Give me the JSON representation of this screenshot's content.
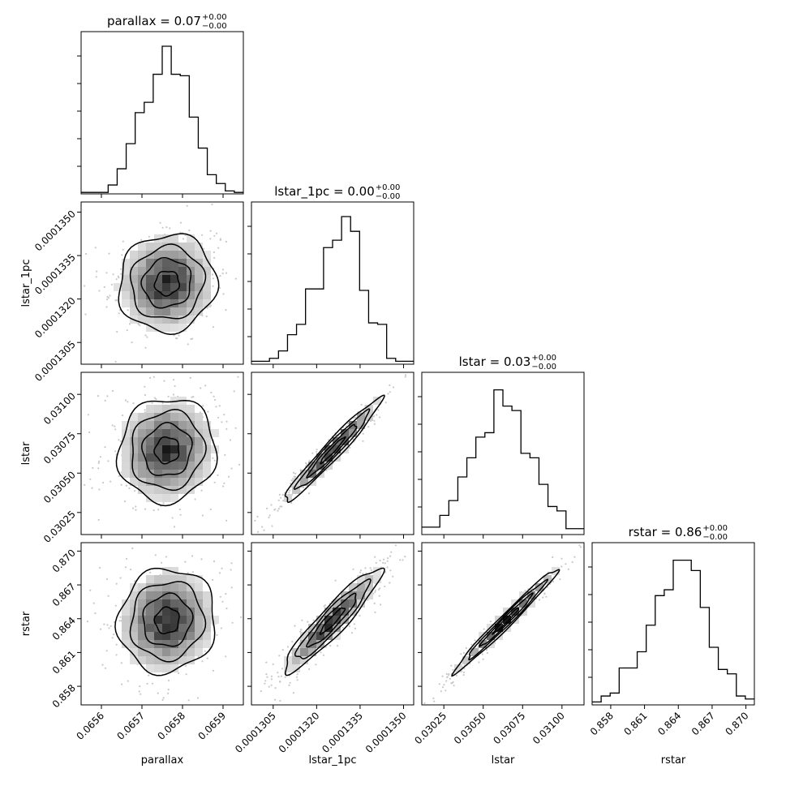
{
  "chart_data": {
    "type": "corner",
    "parameters": [
      "parallax",
      "lstar_1pc",
      "lstar",
      "rstar"
    ],
    "titles": [
      {
        "base": "parallax = 0.07",
        "sup": "+0.00",
        "sub": "−0.00"
      },
      {
        "base": "lstar_1pc = 0.00",
        "sup": "+0.00",
        "sub": "−0.00"
      },
      {
        "base": "lstar = 0.03",
        "sup": "+0.00",
        "sub": "−0.00"
      },
      {
        "base": "rstar = 0.86",
        "sup": "+0.00",
        "sub": "−0.00"
      }
    ],
    "axis_labels": [
      "parallax",
      "lstar_1pc",
      "lstar",
      "rstar"
    ],
    "ranges": [
      [
        0.06555,
        0.06595
      ],
      [
        0.00012975,
        0.00013535
      ],
      [
        0.03011,
        0.03114
      ],
      [
        0.85635,
        0.87075
      ]
    ],
    "ticks": [
      {
        "values": [
          0.0656,
          0.0657,
          0.0658,
          0.0659
        ],
        "labels": [
          "0.0656",
          "0.0657",
          "0.0658",
          "0.0659"
        ]
      },
      {
        "values": [
          0.0001305,
          0.000132,
          0.0001335,
          0.000135
        ],
        "labels": [
          "0.0001305",
          "0.0001320",
          "0.0001335",
          "0.0001350"
        ]
      },
      {
        "values": [
          0.03025,
          0.0305,
          0.03075,
          0.031
        ],
        "labels": [
          "0.03025",
          "0.03050",
          "0.03075",
          "0.03100"
        ]
      },
      {
        "values": [
          0.858,
          0.861,
          0.864,
          0.867,
          0.87
        ],
        "labels": [
          "0.858",
          "0.861",
          "0.864",
          "0.867",
          "0.870"
        ]
      }
    ],
    "histograms": [
      [
        0.01,
        0.01,
        0.01,
        0.06,
        0.17,
        0.34,
        0.55,
        0.62,
        0.81,
        1.0,
        0.81,
        0.8,
        0.52,
        0.31,
        0.13,
        0.07,
        0.02,
        0.01
      ],
      [
        0.02,
        0.02,
        0.04,
        0.09,
        0.2,
        0.27,
        0.51,
        0.51,
        0.79,
        0.84,
        1.0,
        0.9,
        0.5,
        0.28,
        0.27,
        0.04,
        0.02,
        0.02
      ],
      [
        0.05,
        0.05,
        0.13,
        0.23,
        0.39,
        0.52,
        0.66,
        0.69,
        0.98,
        0.87,
        0.84,
        0.55,
        0.52,
        0.34,
        0.19,
        0.16,
        0.04,
        0.04
      ],
      [
        0.02,
        0.06,
        0.08,
        0.25,
        0.25,
        0.36,
        0.54,
        0.74,
        0.78,
        0.98,
        0.98,
        0.91,
        0.66,
        0.39,
        0.24,
        0.21,
        0.06,
        0.04
      ]
    ],
    "histogram_peak_color": "#000000",
    "density_color": "#000000",
    "background": "#ffffff"
  }
}
